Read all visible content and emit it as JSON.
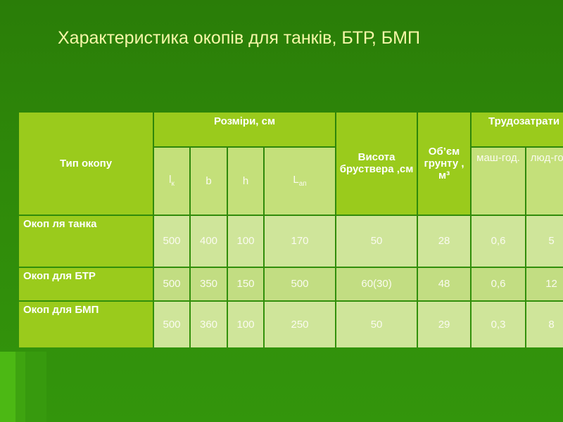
{
  "title": "Характеристика окопів для танків, БТР, БМП",
  "header": {
    "type": "Тип окопу",
    "sizes": "Розміри, см",
    "lk_main": "l",
    "lk_sub": "к",
    "b": "b",
    "h": "h",
    "lap_main": "L",
    "lap_sub": "ап",
    "height": "Висота бруствера ,см",
    "volume": "Об’єм грунту , м³",
    "labor": "Трудозатрати",
    "mach": "маш-год.",
    "people": "люд-год."
  },
  "rows": [
    {
      "type": "Окоп  ля танка",
      "lk": "500",
      "b": "400",
      "h": "100",
      "lap": "170",
      "height": "50",
      "volume": "28",
      "mach": "0,6",
      "people": "5"
    },
    {
      "type": "Окоп для БТР",
      "lk": "500",
      "b": "350",
      "h": "150",
      "lap": "500",
      "height": "60(30)",
      "volume": "48",
      "mach": "0,6",
      "people": "12"
    },
    {
      "type": "Окоп для БМП",
      "lk": "500",
      "b": "360",
      "h": "100",
      "lap": "250",
      "height": "50",
      "volume": "29",
      "mach": "0,3",
      "people": "8"
    }
  ],
  "colors": {
    "background": "#2f8a0a",
    "title_text": "#f7f7a8",
    "header_cell": "#9acb1c",
    "body_cell": "#cfe59a"
  }
}
